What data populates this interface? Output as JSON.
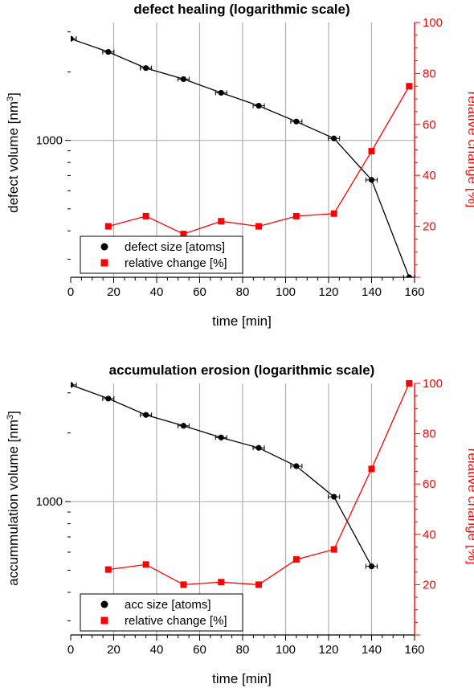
{
  "chart_data": [
    {
      "type": "line",
      "title": "defect healing (logarithmic scale)",
      "xlabel": "time [min]",
      "ylabel": "defect volume [nm",
      "ylabel_sup": "3",
      "ylabel_close": "]",
      "y2label": "relative change [%]",
      "xlim": [
        0,
        160
      ],
      "ylim": [
        250,
        3300
      ],
      "y2lim": [
        0,
        100
      ],
      "yscale": "log",
      "x_ticks": [
        0,
        20,
        40,
        60,
        80,
        100,
        120,
        140,
        160
      ],
      "x_tick_labels": [
        "0",
        "20",
        "40",
        "60",
        "80",
        "100",
        "120",
        "140",
        "160"
      ],
      "y_ticks": [
        1000
      ],
      "y_tick_labels": [
        "1000"
      ],
      "y2_ticks": [
        20,
        40,
        60,
        80,
        100
      ],
      "y2_tick_labels": [
        "20",
        "40",
        "60",
        "80",
        "100"
      ],
      "grid": true,
      "legend_position": "bottom-left",
      "colors": {
        "size": "#000000",
        "change": "#ff0000"
      },
      "series": [
        {
          "name": "defect size [atoms]",
          "axis": "left",
          "marker": "circle",
          "x": [
            0,
            17.5,
            35,
            52.5,
            70,
            87.5,
            105,
            122.5,
            140,
            157.5
          ],
          "y": [
            2800,
            2450,
            2080,
            1860,
            1620,
            1420,
            1210,
            1020,
            670,
            250
          ]
        },
        {
          "name": "relative change [%]",
          "axis": "right",
          "marker": "square",
          "x": [
            17.5,
            35,
            52.5,
            70,
            87.5,
            105,
            122.5,
            140,
            157.5
          ],
          "y": [
            20,
            24,
            17,
            22,
            20,
            24,
            25,
            49.5,
            75
          ]
        }
      ]
    },
    {
      "type": "line",
      "title": "accumulation erosion (logarithmic scale)",
      "xlabel": "time [min]",
      "ylabel": "accummulation volume [nm",
      "ylabel_sup": "3",
      "ylabel_close": "]",
      "y2label": "relative change [%]",
      "xlim": [
        0,
        160
      ],
      "ylim": [
        260,
        3300
      ],
      "y2lim": [
        0,
        100
      ],
      "yscale": "log",
      "x_ticks": [
        0,
        20,
        40,
        60,
        80,
        100,
        120,
        140,
        160
      ],
      "x_tick_labels": [
        "0",
        "20",
        "40",
        "60",
        "80",
        "100",
        "120",
        "140",
        "160"
      ],
      "y_ticks": [
        1000
      ],
      "y_tick_labels": [
        "1000"
      ],
      "y2_ticks": [
        20,
        40,
        60,
        80,
        100
      ],
      "y2_tick_labels": [
        "20",
        "40",
        "60",
        "80",
        "100"
      ],
      "grid": true,
      "legend_position": "bottom-left",
      "colors": {
        "size": "#000000",
        "change": "#ff0000"
      },
      "series": [
        {
          "name": "acc size [atoms]",
          "axis": "left",
          "marker": "circle",
          "x": [
            0,
            17.5,
            35,
            52.5,
            70,
            87.5,
            105,
            122.5,
            140
          ],
          "y": [
            3250,
            2830,
            2400,
            2150,
            1910,
            1720,
            1430,
            1050,
            520
          ]
        },
        {
          "name": "relative change [%]",
          "axis": "right",
          "marker": "square",
          "x": [
            17.5,
            35,
            52.5,
            70,
            87.5,
            105,
            122.5,
            140,
            157.5
          ],
          "y": [
            26,
            28,
            20,
            21,
            20,
            30,
            34,
            66,
            100
          ]
        }
      ]
    }
  ]
}
